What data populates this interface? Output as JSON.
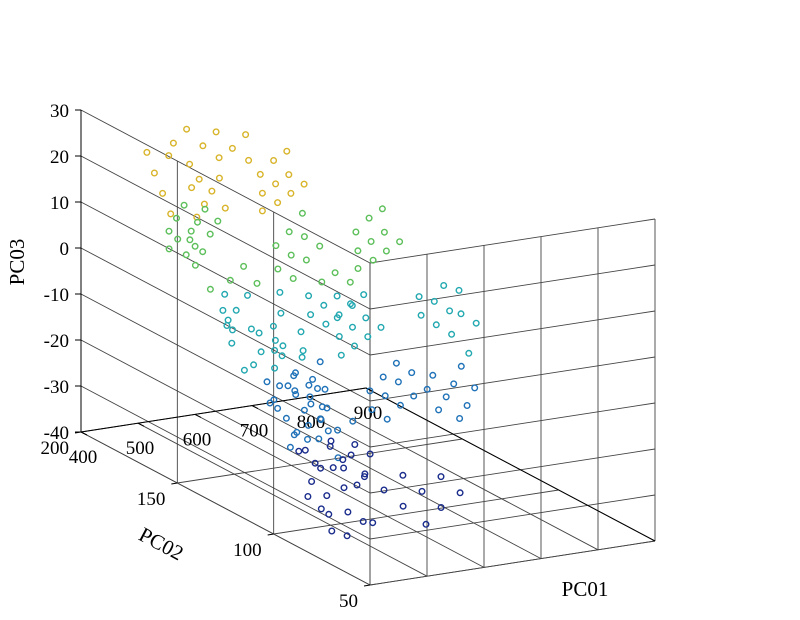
{
  "chart_data": {
    "type": "scatter",
    "projection": "3d",
    "xlabel": "PC01",
    "ylabel": "PC02",
    "zlabel": "PC03",
    "xlim": [
      400,
      900
    ],
    "ylim": [
      50,
      200
    ],
    "zlim": [
      -40,
      30
    ],
    "xticks": [
      "400",
      "500",
      "600",
      "700",
      "800",
      "900"
    ],
    "yticks": [
      "50",
      "100",
      "150",
      "200"
    ],
    "zticks": [
      "-40",
      "-30",
      "-20",
      "-10",
      "0",
      "10",
      "20",
      "30"
    ],
    "grid": true,
    "colormap": [
      "#1a2c8c",
      "#1f72b8",
      "#22a8b0",
      "#5cbf5a",
      "#d8b42a"
    ],
    "points": [
      [
        470,
        110,
        -22
      ],
      [
        480,
        115,
        -26
      ],
      [
        490,
        120,
        -21
      ],
      [
        500,
        112,
        -24
      ],
      [
        505,
        118,
        -28
      ],
      [
        510,
        108,
        -19
      ],
      [
        515,
        122,
        -25
      ],
      [
        520,
        114,
        -30
      ],
      [
        525,
        119,
        -23
      ],
      [
        530,
        105,
        -27
      ],
      [
        485,
        125,
        -18
      ],
      [
        495,
        130,
        -20
      ],
      [
        505,
        128,
        -16
      ],
      [
        515,
        132,
        -22
      ],
      [
        525,
        126,
        -17
      ],
      [
        535,
        124,
        -21
      ],
      [
        540,
        118,
        -26
      ],
      [
        545,
        112,
        -31
      ],
      [
        550,
        116,
        -24
      ],
      [
        555,
        110,
        -29
      ],
      [
        460,
        100,
        -33
      ],
      [
        470,
        96,
        -35
      ],
      [
        480,
        104,
        -31
      ],
      [
        490,
        98,
        -37
      ],
      [
        500,
        102,
        -34
      ],
      [
        510,
        94,
        -36
      ],
      [
        520,
        99,
        -32
      ],
      [
        530,
        92,
        -38
      ],
      [
        475,
        92,
        -39
      ],
      [
        495,
        90,
        -40
      ],
      [
        520,
        135,
        -14
      ],
      [
        530,
        138,
        -11
      ],
      [
        540,
        134,
        -18
      ],
      [
        550,
        140,
        -13
      ],
      [
        560,
        136,
        -16
      ],
      [
        565,
        130,
        -20
      ],
      [
        570,
        126,
        -24
      ],
      [
        575,
        122,
        -28
      ],
      [
        580,
        128,
        -22
      ],
      [
        585,
        132,
        -19
      ],
      [
        545,
        142,
        -10
      ],
      [
        555,
        146,
        -8
      ],
      [
        565,
        144,
        -12
      ],
      [
        575,
        148,
        -6
      ],
      [
        585,
        140,
        -14
      ],
      [
        590,
        136,
        -18
      ],
      [
        595,
        130,
        -23
      ],
      [
        600,
        126,
        -27
      ],
      [
        605,
        134,
        -20
      ],
      [
        610,
        138,
        -15
      ],
      [
        540,
        125,
        -30
      ],
      [
        550,
        120,
        -33
      ],
      [
        560,
        118,
        -28
      ],
      [
        570,
        114,
        -32
      ],
      [
        580,
        110,
        -35
      ],
      [
        590,
        116,
        -30
      ],
      [
        600,
        112,
        -34
      ],
      [
        610,
        120,
        -29
      ],
      [
        620,
        124,
        -25
      ],
      [
        630,
        118,
        -31
      ],
      [
        470,
        145,
        -6
      ],
      [
        480,
        150,
        -4
      ],
      [
        490,
        148,
        -8
      ],
      [
        500,
        155,
        -2
      ],
      [
        510,
        152,
        -5
      ],
      [
        520,
        158,
        0
      ],
      [
        530,
        150,
        -9
      ],
      [
        540,
        155,
        -3
      ],
      [
        550,
        160,
        2
      ],
      [
        560,
        156,
        -1
      ],
      [
        465,
        160,
        8
      ],
      [
        475,
        165,
        10
      ],
      [
        485,
        162,
        6
      ],
      [
        495,
        168,
        12
      ],
      [
        505,
        164,
        9
      ],
      [
        515,
        170,
        14
      ],
      [
        525,
        166,
        11
      ],
      [
        535,
        172,
        16
      ],
      [
        545,
        168,
        13
      ],
      [
        555,
        174,
        18
      ],
      [
        470,
        175,
        4
      ],
      [
        480,
        178,
        7
      ],
      [
        490,
        172,
        3
      ],
      [
        500,
        180,
        9
      ],
      [
        510,
        176,
        5
      ],
      [
        520,
        182,
        11
      ],
      [
        530,
        178,
        8
      ],
      [
        540,
        184,
        14
      ],
      [
        550,
        180,
        10
      ],
      [
        560,
        186,
        15
      ],
      [
        580,
        150,
        -2
      ],
      [
        590,
        154,
        2
      ],
      [
        600,
        158,
        6
      ],
      [
        610,
        152,
        0
      ],
      [
        620,
        156,
        4
      ],
      [
        630,
        160,
        8
      ],
      [
        640,
        154,
        3
      ],
      [
        650,
        158,
        7
      ],
      [
        660,
        162,
        11
      ],
      [
        670,
        156,
        5
      ],
      [
        600,
        165,
        12
      ],
      [
        610,
        168,
        15
      ],
      [
        620,
        172,
        18
      ],
      [
        630,
        166,
        13
      ],
      [
        640,
        170,
        16
      ],
      [
        650,
        174,
        20
      ],
      [
        660,
        168,
        14
      ],
      [
        670,
        172,
        17
      ],
      [
        680,
        176,
        21
      ],
      [
        690,
        170,
        15
      ],
      [
        620,
        130,
        -12
      ],
      [
        630,
        134,
        -9
      ],
      [
        640,
        138,
        -6
      ],
      [
        650,
        132,
        -11
      ],
      [
        660,
        136,
        -8
      ],
      [
        670,
        140,
        -4
      ],
      [
        680,
        134,
        -10
      ],
      [
        690,
        138,
        -7
      ],
      [
        700,
        142,
        -3
      ],
      [
        710,
        136,
        -9
      ],
      [
        640,
        120,
        -22
      ],
      [
        650,
        124,
        -19
      ],
      [
        660,
        118,
        -24
      ],
      [
        670,
        122,
        -20
      ],
      [
        680,
        126,
        -17
      ],
      [
        690,
        120,
        -22
      ],
      [
        700,
        124,
        -18
      ],
      [
        710,
        128,
        -15
      ],
      [
        720,
        122,
        -21
      ],
      [
        730,
        126,
        -17
      ],
      [
        700,
        145,
        2
      ],
      [
        710,
        148,
        5
      ],
      [
        720,
        152,
        8
      ],
      [
        730,
        146,
        3
      ],
      [
        740,
        150,
        6
      ],
      [
        750,
        154,
        10
      ],
      [
        760,
        148,
        4
      ],
      [
        770,
        152,
        7
      ],
      [
        780,
        156,
        11
      ],
      [
        790,
        150,
        5
      ],
      [
        720,
        115,
        -18
      ],
      [
        730,
        112,
        -22
      ],
      [
        740,
        118,
        -16
      ],
      [
        750,
        114,
        -20
      ],
      [
        760,
        110,
        -24
      ],
      [
        770,
        116,
        -18
      ],
      [
        780,
        112,
        -22
      ],
      [
        790,
        118,
        -15
      ],
      [
        800,
        114,
        -19
      ],
      [
        810,
        120,
        -13
      ],
      [
        560,
        100,
        -30
      ],
      [
        580,
        96,
        -33
      ],
      [
        600,
        92,
        -36
      ],
      [
        620,
        98,
        -31
      ],
      [
        640,
        94,
        -34
      ],
      [
        660,
        90,
        -37
      ],
      [
        680,
        96,
        -32
      ],
      [
        700,
        92,
        -35
      ],
      [
        540,
        90,
        -38
      ],
      [
        620,
        86,
        -39
      ],
      [
        450,
        130,
        -12
      ],
      [
        455,
        138,
        -8
      ],
      [
        462,
        142,
        -4
      ],
      [
        458,
        150,
        1
      ],
      [
        452,
        156,
        5
      ],
      [
        448,
        164,
        9
      ],
      [
        456,
        170,
        13
      ],
      [
        462,
        176,
        16
      ],
      [
        468,
        182,
        19
      ],
      [
        475,
        188,
        22
      ],
      [
        520,
        190,
        20
      ],
      [
        535,
        192,
        22
      ],
      [
        550,
        188,
        18
      ],
      [
        565,
        194,
        24
      ],
      [
        580,
        190,
        21
      ],
      [
        595,
        186,
        19
      ],
      [
        610,
        192,
        23
      ],
      [
        625,
        188,
        20
      ],
      [
        640,
        184,
        18
      ],
      [
        655,
        190,
        22
      ],
      [
        600,
        140,
        -5
      ],
      [
        610,
        144,
        -2
      ],
      [
        620,
        138,
        -7
      ],
      [
        630,
        142,
        -4
      ],
      [
        640,
        146,
        0
      ],
      [
        650,
        140,
        -6
      ],
      [
        660,
        144,
        -3
      ],
      [
        670,
        148,
        1
      ],
      [
        680,
        142,
        -5
      ],
      [
        690,
        146,
        -1
      ],
      [
        500,
        140,
        -14
      ],
      [
        510,
        136,
        -17
      ],
      [
        520,
        142,
        -12
      ],
      [
        530,
        146,
        -9
      ],
      [
        540,
        130,
        -19
      ],
      [
        550,
        134,
        -16
      ],
      [
        560,
        128,
        -21
      ],
      [
        570,
        132,
        -18
      ],
      [
        580,
        138,
        -12
      ],
      [
        590,
        142,
        -9
      ],
      [
        760,
        130,
        -6
      ],
      [
        770,
        134,
        -3
      ],
      [
        780,
        128,
        -8
      ],
      [
        790,
        132,
        -4
      ],
      [
        800,
        126,
        -10
      ],
      [
        810,
        130,
        -6
      ],
      [
        820,
        136,
        -2
      ],
      [
        830,
        130,
        -7
      ],
      [
        840,
        134,
        -3
      ],
      [
        850,
        128,
        -9
      ]
    ]
  }
}
